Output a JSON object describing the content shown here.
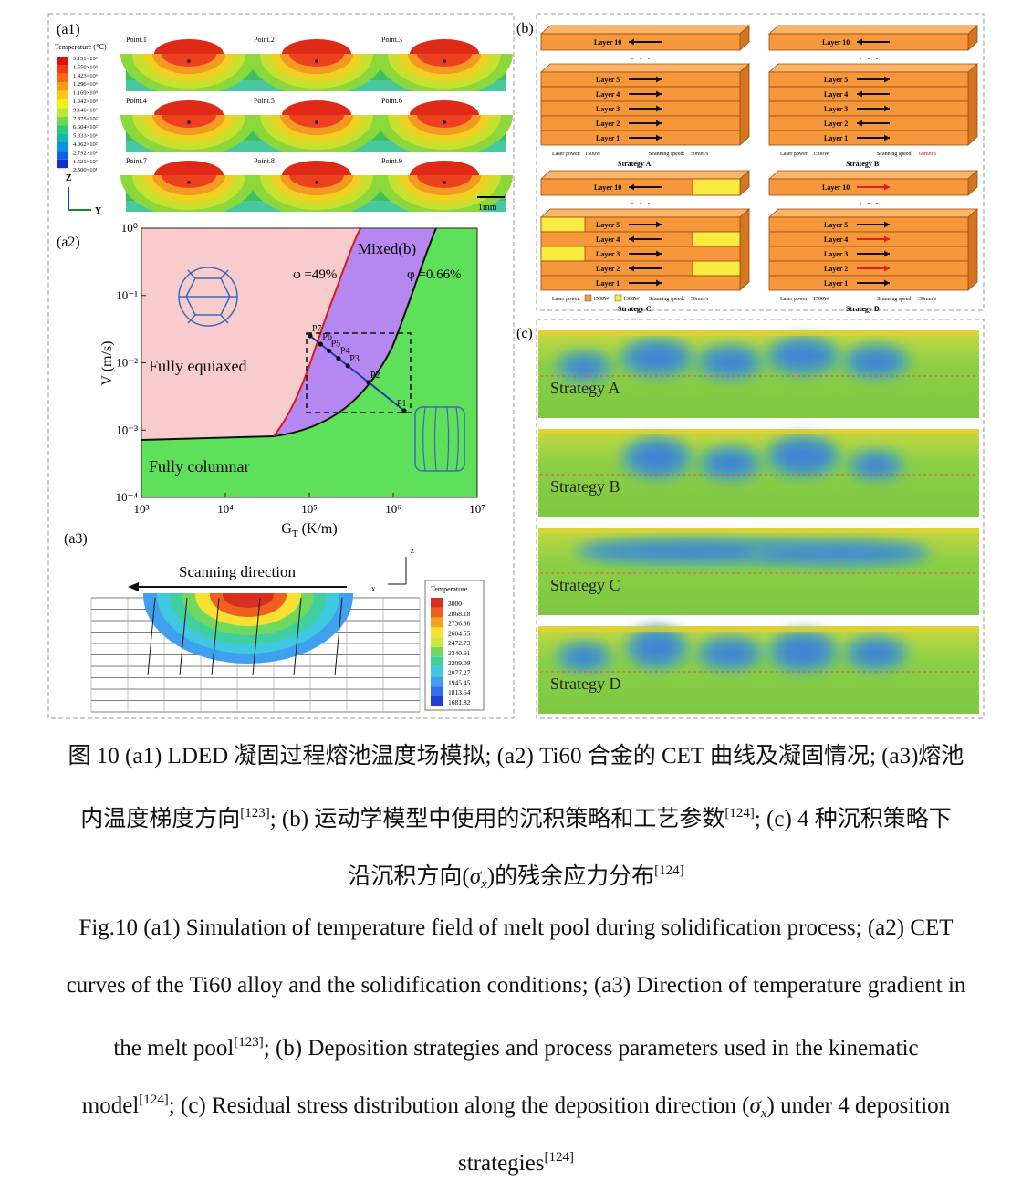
{
  "panel_a1": {
    "label": "(a1)",
    "colorbar_title": "Temperature (℃)",
    "colorbar_labels": [
      "3.151×10³",
      "1.550×10³",
      "1.423×10³",
      "1.296×10³",
      "1.169×10³",
      "1.042×10³",
      "9.146×10²",
      "7.875×10²",
      "6.604×10²",
      "5.333×10²",
      "4.062×10²",
      "2.792×10²",
      "1.521×10²",
      "2.500×10¹"
    ],
    "points": [
      "Point.1",
      "Point.2",
      "Point.3",
      "Point.4",
      "Point.5",
      "Point.6",
      "Point.7",
      "Point.8",
      "Point.9"
    ],
    "axis_z": "Z",
    "axis_y": "Y",
    "scale": "1mm"
  },
  "panel_a2": {
    "label": "(a2)",
    "x_label": "G",
    "x_label_sub": "T",
    "x_label_unit": " (K/m)",
    "y_label": "V (m/s)",
    "xlim": [
      1000,
      10000000
    ],
    "ylim": [
      0.0001,
      1
    ],
    "xticks": [
      {
        "value": 1000,
        "label": "10³"
      },
      {
        "value": 10000,
        "label": "10⁴"
      },
      {
        "value": 100000,
        "label": "10⁵"
      },
      {
        "value": 1000000,
        "label": "10⁶"
      },
      {
        "value": 10000000,
        "label": "10⁷"
      }
    ],
    "yticks": [
      {
        "value": 1,
        "label": "10⁰"
      },
      {
        "value": 0.1,
        "label": "10⁻¹"
      },
      {
        "value": 0.01,
        "label": "10⁻²"
      },
      {
        "value": 0.001,
        "label": "10⁻³"
      },
      {
        "value": 0.0001,
        "label": "10⁻⁴"
      }
    ],
    "mixed": "Mixed(b)",
    "phi_1": "φ =49%",
    "phi_2": "φ =0.66%",
    "equiaxed": "Fully equiaxed",
    "columnar": "Fully columnar",
    "points": [
      "P1",
      "P2",
      "P3",
      "P4",
      "P5",
      "P6",
      "P7"
    ]
  },
  "panel_a3": {
    "label": "(a3)",
    "title": "Scanning direction",
    "legend_title": "Temperature",
    "legend_labels": [
      "3000",
      "2868.18",
      "2736.36",
      "2604.55",
      "2472.73",
      "2340.91",
      "2209.09",
      "2077.27",
      "1945.45",
      "1813.64",
      "1681.82"
    ],
    "axis_z": "z",
    "axis_x": "x"
  },
  "panel_b": {
    "label": "(b)",
    "strategies": [
      {
        "name": "Strategy A",
        "top_layer": "Layer 10",
        "layers": [
          "Layer 5",
          "Layer 4",
          "Layer 3",
          "Layer 2",
          "Layer 1"
        ],
        "power_label": "Laser power:",
        "power": [
          "1500W"
        ],
        "speed_label": "Scanning speed:",
        "speed": "50mm/s"
      },
      {
        "name": "Strategy B",
        "top_layer": "Layer 10",
        "layers": [
          "Layer 5",
          "Layer 4",
          "Layer 3",
          "Layer 2",
          "Layer 1"
        ],
        "power_label": "Laser power:",
        "power": [
          "1500W"
        ],
        "speed_label": "Scanning speed:",
        "speed": "60mm/s"
      },
      {
        "name": "Strategy C",
        "top_layer": "Layer 10",
        "layers": [
          "Layer 5",
          "Layer 4",
          "Layer 3",
          "Layer 2",
          "Layer 1"
        ],
        "power_label": "Laser power:",
        "power": [
          "1500W",
          "1300W"
        ],
        "speed_label": "Scanning speed:",
        "speed": "50mm/s"
      },
      {
        "name": "Strategy D",
        "top_layer": "Layer 10",
        "layers": [
          "Layer 5",
          "Layer 4",
          "Layer 3",
          "Layer 2",
          "Layer 1"
        ],
        "power_label": "Laser power:",
        "power": [
          "1500W"
        ],
        "speed_label": "Scanning speed:",
        "speed": "50mm/s"
      }
    ]
  },
  "panel_c": {
    "label": "(c)",
    "strategies": [
      "Strategy A",
      "Strategy B",
      "Strategy C",
      "Strategy D"
    ]
  },
  "caption_zh": {
    "lines": [
      [
        {
          "text": "图 10 (a1) LDED 凝固过程熔池温度场模拟; (a2) Ti60 合金的 CET 曲线及凝固情况; (a3)熔池",
          "style": "normal"
        }
      ],
      [
        {
          "text": "内温度梯度方向",
          "style": "normal"
        },
        {
          "text": "[123]",
          "style": "sup"
        },
        {
          "text": "; (b)  运动学模型中使用的沉积策略和工艺参数",
          "style": "normal"
        },
        {
          "text": "[124]",
          "style": "sup"
        },
        {
          "text": "; (c) 4 种沉积策略下",
          "style": "normal"
        }
      ],
      [
        {
          "text": "沿沉积方向(",
          "style": "normal"
        },
        {
          "text": "σ",
          "style": "italic"
        },
        {
          "text": "x",
          "style": "sub"
        },
        {
          "text": ")的残余应力分布",
          "style": "normal"
        },
        {
          "text": "[124]",
          "style": "sup"
        }
      ]
    ]
  },
  "caption_en": {
    "lines": [
      [
        {
          "text": "Fig.10 (a1) Simulation of temperature field of melt pool during solidification process; (a2) CET",
          "style": "normal"
        }
      ],
      [
        {
          "text": "curves of the Ti60 alloy and the solidification conditions; (a3) Direction of temperature gradient in",
          "style": "normal"
        }
      ],
      [
        {
          "text": "the melt pool",
          "style": "normal"
        },
        {
          "text": "[123]",
          "style": "sup"
        },
        {
          "text": "; (b) Deposition strategies and process parameters used in the kinematic",
          "style": "normal"
        }
      ],
      [
        {
          "text": "model",
          "style": "normal"
        },
        {
          "text": "[124]",
          "style": "sup"
        },
        {
          "text": "; (c) Residual stress distribution along the deposition direction (",
          "style": "normal"
        },
        {
          "text": "σ",
          "style": "italic"
        },
        {
          "text": "x",
          "style": "sub"
        },
        {
          "text": ") under 4 deposition",
          "style": "normal"
        }
      ],
      [
        {
          "text": "strategies",
          "style": "normal"
        },
        {
          "text": "[124]",
          "style": "sup"
        }
      ]
    ]
  }
}
